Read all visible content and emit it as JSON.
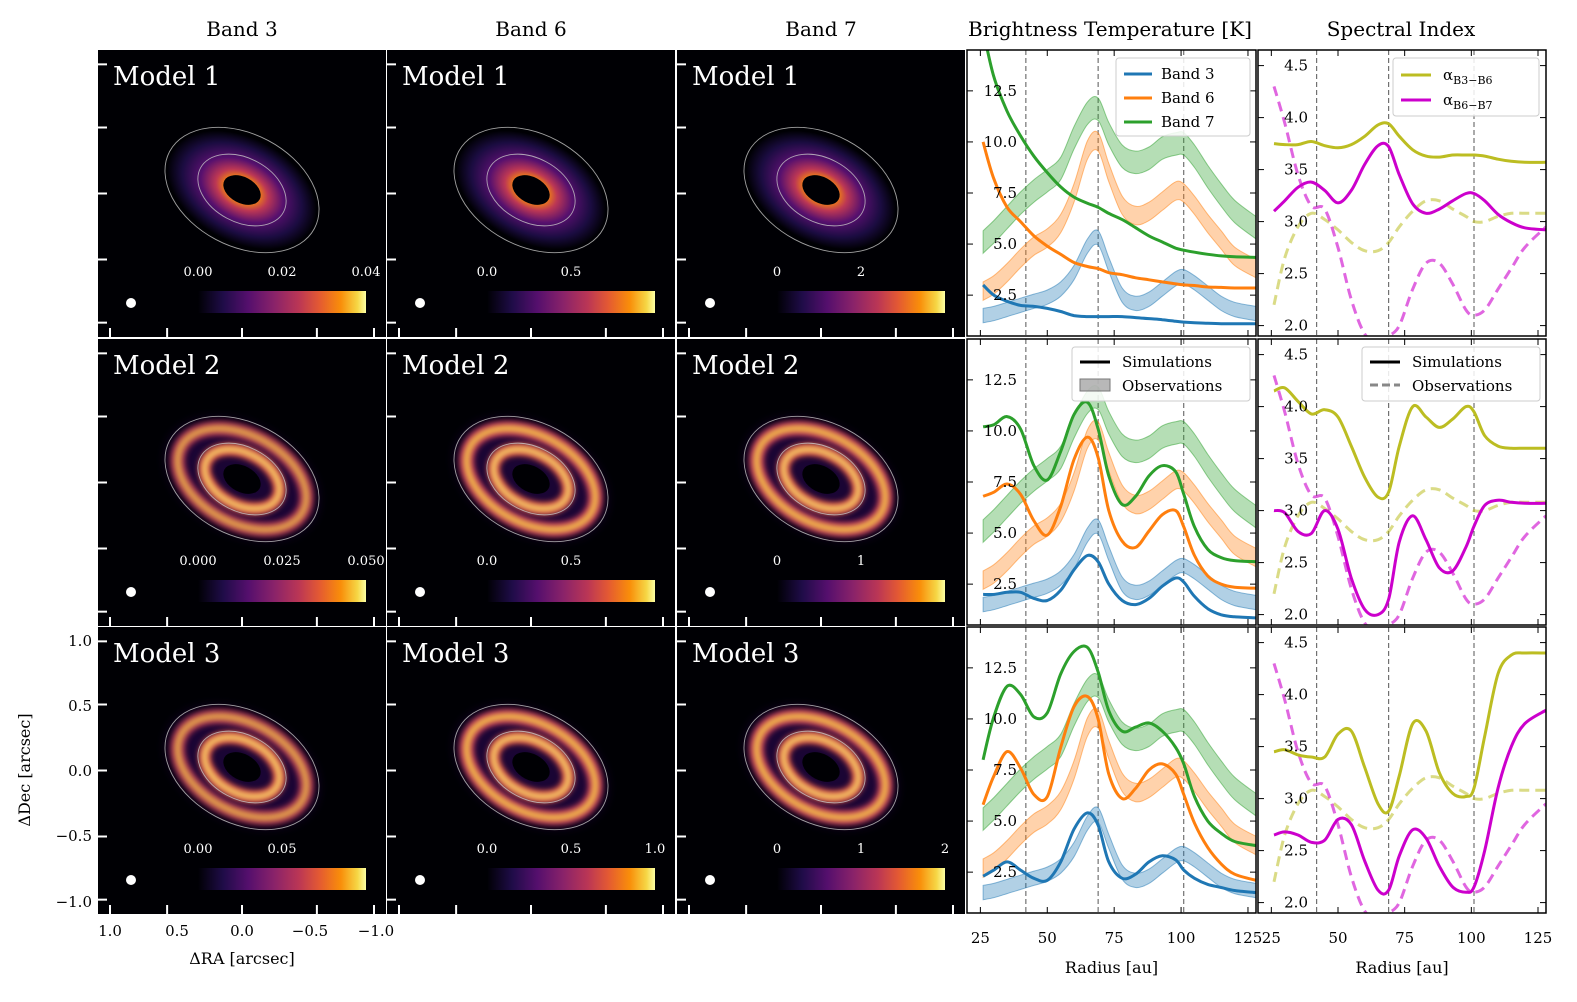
{
  "columns": {
    "band3": "Band 3",
    "band6": "Band 6",
    "band7": "Band 7",
    "tb": "Brightness Temperature [K]",
    "alpha": "Spectral Index"
  },
  "image_axes": {
    "xlabel": "ΔRA [arcsec]",
    "ylabel": "ΔDec [arcsec]",
    "xticks": [
      "1.0",
      "0.5",
      "0.0",
      "−0.5",
      "−1.0"
    ],
    "yticks": [
      "1.0",
      "0.5",
      "0.0",
      "−0.5",
      "−1.0"
    ]
  },
  "models": [
    "Model 1",
    "Model 2",
    "Model 3"
  ],
  "colorbar_ticks": [
    [
      [
        "0.00",
        "0.02",
        "0.04"
      ],
      [
        "0.0",
        "0.5"
      ],
      [
        "0",
        "2"
      ]
    ],
    [
      [
        "0.000",
        "0.025",
        "0.050"
      ],
      [
        "0.0",
        "0.5"
      ],
      [
        "0",
        "1"
      ]
    ],
    [
      [
        "0.00",
        "0.05"
      ],
      [
        "0.0",
        "0.5",
        "1.0"
      ],
      [
        "0",
        "1",
        "2"
      ]
    ]
  ],
  "legends": {
    "tb_top": [
      "Band 3",
      "Band 6",
      "Band 7"
    ],
    "style": [
      "Simulations",
      "Observations"
    ],
    "alpha_top": [
      "α",
      "α"
    ],
    "alpha_sub": [
      "B3−B6",
      "B6−B7"
    ]
  },
  "colors": {
    "band3": "#1f77b4",
    "band6": "#ff7f0e",
    "band7": "#2ca02c",
    "alpha_b3b6": "#bcbd22",
    "alpha_b6b7": "#cc00cc",
    "colormap": "inferno"
  },
  "chart_data": [
    {
      "type": "line",
      "panel": "brightness-temperature",
      "xlabel": "Radius [au]",
      "ylabel": "",
      "xlim": [
        20,
        128
      ],
      "ylim": [
        0.5,
        14.5
      ],
      "xticks": [
        25,
        50,
        75,
        100,
        125
      ],
      "yticks": [
        2.5,
        5.0,
        7.5,
        10.0,
        12.5
      ],
      "vlines": [
        42,
        69,
        101
      ],
      "x": [
        26,
        30,
        35,
        40,
        45,
        50,
        55,
        60,
        65,
        69,
        73,
        78,
        83,
        88,
        93,
        98,
        101,
        105,
        110,
        115,
        120,
        128
      ],
      "observations": [
        {
          "name": "Band 3",
          "values": [
            1.5,
            1.6,
            1.8,
            2.0,
            2.2,
            2.4,
            2.8,
            3.6,
            4.9,
            5.3,
            4.0,
            2.5,
            2.1,
            2.3,
            2.8,
            3.3,
            3.4,
            3.1,
            2.6,
            2.1,
            1.8,
            1.6
          ],
          "band": 0.35
        },
        {
          "name": "Band 6",
          "values": [
            2.7,
            3.0,
            3.6,
            4.3,
            4.9,
            5.3,
            6.0,
            7.5,
            9.6,
            10.0,
            8.5,
            6.9,
            6.4,
            6.6,
            7.1,
            7.6,
            7.5,
            6.9,
            6.0,
            5.2,
            4.4,
            3.8
          ],
          "band": 0.45
        },
        {
          "name": "Band 7",
          "values": [
            5.1,
            5.6,
            6.3,
            7.0,
            7.6,
            8.1,
            8.7,
            10.2,
            11.4,
            11.6,
            10.4,
            9.3,
            9.0,
            9.2,
            9.7,
            9.9,
            9.9,
            9.3,
            8.3,
            7.4,
            6.6,
            5.8
          ],
          "band": 0.55
        }
      ],
      "models": [
        {
          "name": "Model 1",
          "series": [
            {
              "name": "Band 3",
              "values": [
                3.0,
                2.5,
                2.2,
                2.0,
                1.95,
                1.85,
                1.7,
                1.5,
                1.45,
                1.45,
                1.45,
                1.45,
                1.4,
                1.35,
                1.3,
                1.22,
                1.18,
                1.15,
                1.12,
                1.1,
                1.1,
                1.1
              ]
            },
            {
              "name": "Band 6",
              "values": [
                10.0,
                8.2,
                6.8,
                6.1,
                5.4,
                4.9,
                4.5,
                4.1,
                3.9,
                3.8,
                3.6,
                3.5,
                3.35,
                3.25,
                3.15,
                3.05,
                3.0,
                2.97,
                2.9,
                2.88,
                2.85,
                2.85
              ]
            },
            {
              "name": "Band 7",
              "values": [
                15.5,
                13.2,
                11.5,
                10.3,
                9.3,
                8.5,
                7.8,
                7.3,
                7.0,
                6.8,
                6.5,
                6.2,
                5.8,
                5.4,
                5.1,
                4.8,
                4.7,
                4.6,
                4.5,
                4.42,
                4.38,
                4.35
              ]
            }
          ]
        },
        {
          "name": "Model 2",
          "series": [
            {
              "name": "Band 3",
              "values": [
                2.0,
                2.0,
                2.1,
                2.1,
                1.8,
                1.7,
                2.2,
                3.2,
                3.9,
                3.6,
                2.5,
                1.7,
                1.5,
                1.8,
                2.4,
                2.8,
                2.6,
                1.9,
                1.3,
                1.0,
                0.9,
                0.85
              ]
            },
            {
              "name": "Band 6",
              "values": [
                6.8,
                7.0,
                7.4,
                6.9,
                5.6,
                4.9,
                6.3,
                8.6,
                9.7,
                8.7,
                6.1,
                4.6,
                4.3,
                5.1,
                5.9,
                6.1,
                5.3,
                3.9,
                2.9,
                2.5,
                2.35,
                2.3
              ]
            },
            {
              "name": "Band 7",
              "values": [
                10.2,
                10.3,
                10.7,
                10.1,
                8.3,
                7.6,
                9.0,
                10.8,
                11.4,
                10.1,
                7.8,
                6.4,
                6.8,
                7.8,
                8.3,
                8.0,
                6.9,
                5.3,
                4.2,
                3.8,
                3.65,
                3.6
              ]
            }
          ]
        },
        {
          "name": "Model 3",
          "series": [
            {
              "name": "Band 3",
              "values": [
                2.3,
                2.6,
                3.0,
                2.6,
                2.2,
                2.1,
                3.0,
                4.6,
                5.4,
                4.8,
                3.0,
                2.2,
                2.4,
                3.0,
                3.3,
                3.1,
                2.6,
                2.2,
                1.9,
                1.75,
                1.6,
                1.5
              ]
            },
            {
              "name": "Band 6",
              "values": [
                5.8,
                7.2,
                8.4,
                7.6,
                6.3,
                6.2,
                8.6,
                10.6,
                11.1,
                10.0,
                7.3,
                6.1,
                6.6,
                7.5,
                7.8,
                7.3,
                6.3,
                4.9,
                3.7,
                2.9,
                2.4,
                2.1
              ]
            },
            {
              "name": "Band 7",
              "values": [
                8.0,
                10.1,
                11.6,
                11.2,
                10.1,
                10.3,
                12.2,
                13.3,
                13.5,
                12.3,
                10.4,
                9.4,
                9.6,
                9.8,
                9.4,
                8.6,
                7.8,
                6.2,
                5.0,
                4.4,
                4.0,
                3.8
              ]
            }
          ]
        }
      ],
      "legend_placement": "top-right"
    },
    {
      "type": "line",
      "panel": "spectral-index",
      "xlabel": "Radius [au]",
      "ylabel": "",
      "xlim": [
        20,
        128
      ],
      "ylim": [
        1.9,
        4.65
      ],
      "xticks": [
        25,
        50,
        75,
        100,
        125
      ],
      "yticks": [
        2.0,
        2.5,
        3.0,
        3.5,
        4.0,
        4.5
      ],
      "vlines": [
        42,
        69,
        101
      ],
      "x": [
        26,
        30,
        35,
        40,
        45,
        50,
        55,
        60,
        65,
        69,
        73,
        78,
        83,
        88,
        93,
        98,
        101,
        105,
        110,
        115,
        120,
        128
      ],
      "observations": [
        {
          "name": "αB3−B6",
          "values": [
            2.2,
            2.65,
            2.95,
            3.08,
            3.02,
            2.92,
            2.8,
            2.72,
            2.72,
            2.8,
            2.95,
            3.1,
            3.2,
            3.2,
            3.12,
            3.05,
            3.0,
            3.0,
            3.05,
            3.08,
            3.08,
            3.08
          ]
        },
        {
          "name": "αB6−B7",
          "values": [
            4.3,
            3.95,
            3.45,
            3.15,
            3.12,
            2.75,
            2.25,
            1.92,
            1.85,
            1.9,
            2.0,
            2.35,
            2.6,
            2.6,
            2.4,
            2.15,
            2.1,
            2.15,
            2.35,
            2.55,
            2.75,
            2.95
          ]
        }
      ],
      "models": [
        {
          "name": "Model 1",
          "series": [
            {
              "name": "αB3−B6",
              "values": [
                3.75,
                3.74,
                3.74,
                3.77,
                3.73,
                3.71,
                3.74,
                3.82,
                3.93,
                3.94,
                3.82,
                3.69,
                3.63,
                3.62,
                3.64,
                3.64,
                3.64,
                3.63,
                3.6,
                3.58,
                3.57,
                3.57
              ]
            },
            {
              "name": "αB6−B7",
              "values": [
                3.1,
                3.2,
                3.33,
                3.38,
                3.3,
                3.18,
                3.3,
                3.55,
                3.73,
                3.72,
                3.45,
                3.17,
                3.08,
                3.12,
                3.2,
                3.27,
                3.27,
                3.2,
                3.07,
                2.99,
                2.94,
                2.92
              ]
            }
          ]
        },
        {
          "name": "Model 2",
          "series": [
            {
              "name": "αB3−B6",
              "values": [
                4.15,
                4.18,
                4.05,
                3.93,
                3.97,
                3.9,
                3.62,
                3.32,
                3.13,
                3.18,
                3.62,
                4.0,
                3.9,
                3.8,
                3.88,
                4.0,
                3.95,
                3.72,
                3.62,
                3.6,
                3.6,
                3.6
              ]
            },
            {
              "name": "αB6−B7",
              "values": [
                3.0,
                2.98,
                2.8,
                2.78,
                3.0,
                2.82,
                2.35,
                2.05,
                2.0,
                2.15,
                2.7,
                2.95,
                2.72,
                2.45,
                2.42,
                2.65,
                2.85,
                3.05,
                3.1,
                3.08,
                3.07,
                3.07
              ]
            }
          ]
        },
        {
          "name": "Model 3",
          "series": [
            {
              "name": "αB3−B6",
              "values": [
                3.45,
                3.47,
                3.42,
                3.4,
                3.4,
                3.62,
                3.65,
                3.3,
                2.95,
                2.88,
                3.22,
                3.72,
                3.65,
                3.25,
                3.05,
                3.02,
                3.1,
                3.6,
                4.2,
                4.38,
                4.4,
                4.4
              ]
            },
            {
              "name": "αB6−B7",
              "values": [
                2.65,
                2.68,
                2.65,
                2.58,
                2.6,
                2.8,
                2.75,
                2.4,
                2.12,
                2.12,
                2.45,
                2.7,
                2.62,
                2.35,
                2.15,
                2.1,
                2.15,
                2.5,
                3.1,
                3.5,
                3.72,
                3.85
              ]
            }
          ]
        }
      ],
      "legend_placement": "top-right"
    }
  ]
}
